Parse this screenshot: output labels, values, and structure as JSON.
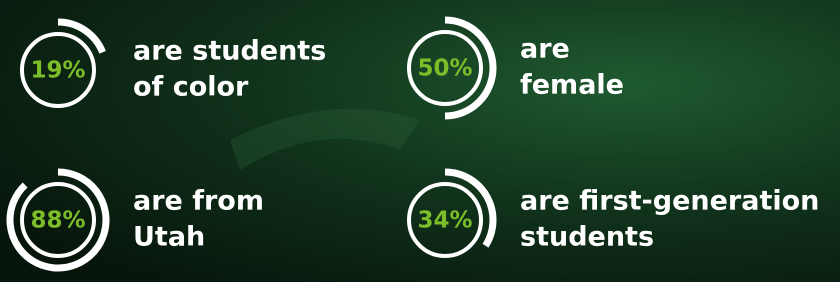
{
  "stats": [
    {
      "value": 19,
      "value_label": "19%",
      "lines": [
        "are students",
        "of color"
      ]
    },
    {
      "value": 50,
      "value_label": "50%",
      "lines": [
        "are",
        "female"
      ]
    },
    {
      "value": 88,
      "value_label": "88%",
      "lines": [
        "are from",
        "Utah"
      ]
    },
    {
      "value": 34,
      "value_label": "34%",
      "lines": [
        "are first-generation",
        "students"
      ]
    }
  ]
}
